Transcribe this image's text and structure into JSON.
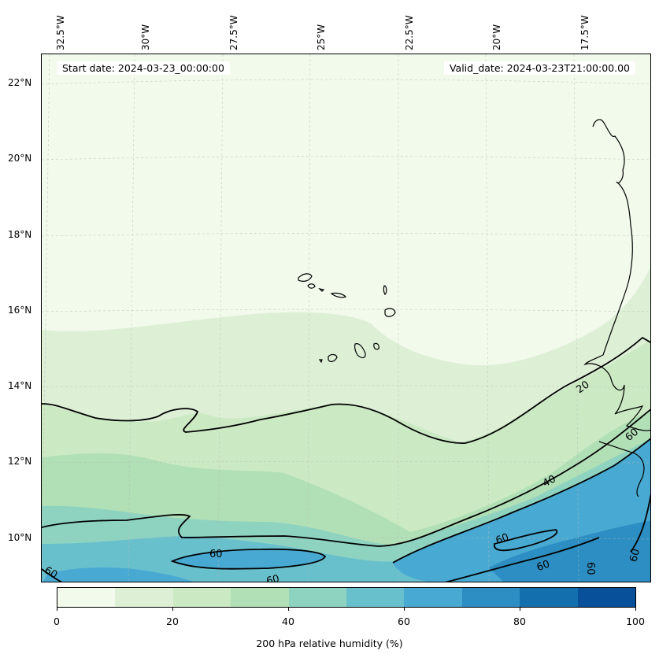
{
  "map": {
    "info": {
      "start_date": "Start date: 2024-03-23_00:00:00",
      "valid_date": "Valid_date: 2024-03-23T21:00:00.00"
    },
    "lon_labels": [
      "32.5°W",
      "30°W",
      "27.5°W",
      "25°W",
      "22.5°W",
      "20°W",
      "17.5°W"
    ],
    "lat_labels": [
      "22°N",
      "20°N",
      "18°N",
      "16°N",
      "14°N",
      "12°N",
      "10°N"
    ],
    "contour_labels": [
      "20",
      "40",
      "60",
      "60",
      "60",
      "60",
      "60",
      "60",
      "60",
      "60"
    ],
    "colorbar": {
      "label": "200 hPa relative humidity (%)",
      "ticks": [
        "0",
        "20",
        "40",
        "60",
        "80",
        "100"
      ],
      "colors": [
        "#f2faeb",
        "#ddf0d6",
        "#cbeac3",
        "#b1dfb6",
        "#8ed3c0",
        "#69c0cd",
        "#48a9d2",
        "#2c8ec2",
        "#146fae",
        "#08509a"
      ]
    }
  }
}
